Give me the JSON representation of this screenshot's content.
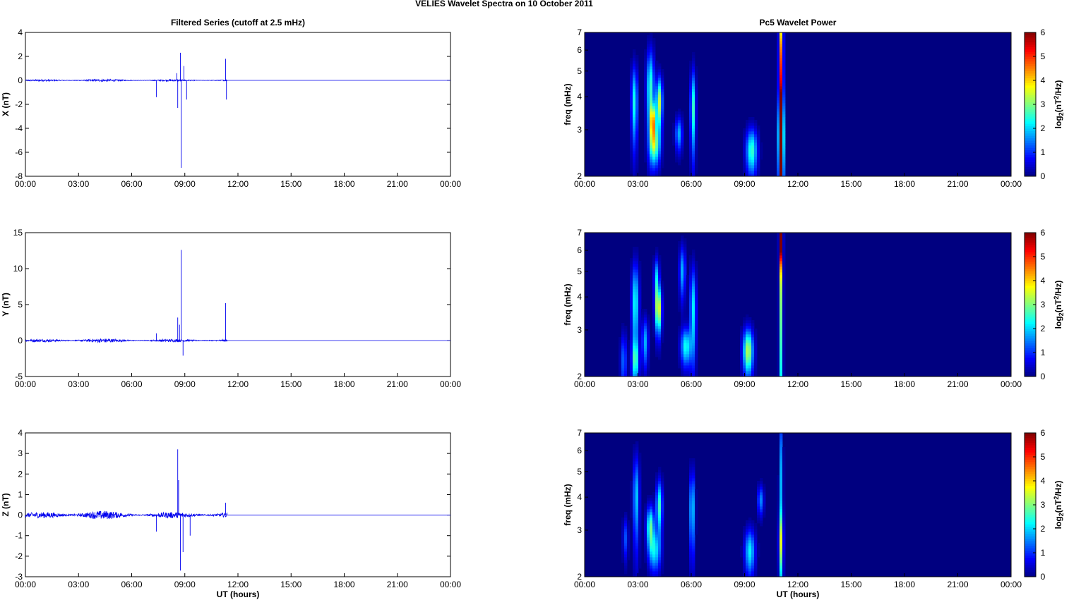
{
  "figure": {
    "title": "VELIES Wavelet Spectra on 10 October   2011",
    "left_title": "Filtered Series (cutoff at 2.5 mHz)",
    "right_title": "Pc5 Wavelet Power",
    "x_label": "UT (hours)"
  },
  "chart_data": [
    {
      "type": "line",
      "ylabel": "X (nT)",
      "xlim": [
        0,
        24
      ],
      "ylim": [
        -8,
        4
      ],
      "yticks": [
        -8,
        -6,
        -4,
        -2,
        0,
        2,
        4
      ],
      "xtick_labels": [
        "00:00",
        "03:00",
        "06:00",
        "09:00",
        "12:00",
        "15:00",
        "18:00",
        "21:00",
        "00:00"
      ],
      "noise_amp": 0.07,
      "active_end_hour": 11.4,
      "spikes": [
        {
          "x": 7.4,
          "y": -1.4
        },
        {
          "x": 8.55,
          "y": 0.6
        },
        {
          "x": 8.6,
          "y": -2.3
        },
        {
          "x": 8.75,
          "y": 2.3
        },
        {
          "x": 8.8,
          "y": -7.3
        },
        {
          "x": 8.95,
          "y": 1.2
        },
        {
          "x": 9.1,
          "y": -1.6
        },
        {
          "x": 11.3,
          "y": 1.8
        },
        {
          "x": 11.35,
          "y": -1.6
        }
      ]
    },
    {
      "type": "line",
      "ylabel": "Y (nT)",
      "xlim": [
        0,
        24
      ],
      "ylim": [
        -5,
        15
      ],
      "yticks": [
        -5,
        0,
        5,
        10,
        15
      ],
      "xtick_labels": [
        "00:00",
        "03:00",
        "06:00",
        "09:00",
        "12:00",
        "15:00",
        "18:00",
        "21:00",
        "00:00"
      ],
      "noise_amp": 0.2,
      "active_end_hour": 11.4,
      "spikes": [
        {
          "x": 7.4,
          "y": 1.0
        },
        {
          "x": 8.6,
          "y": 3.2
        },
        {
          "x": 8.7,
          "y": 2.2
        },
        {
          "x": 8.8,
          "y": 12.6
        },
        {
          "x": 8.9,
          "y": -2.1
        },
        {
          "x": 11.3,
          "y": 5.2
        }
      ]
    },
    {
      "type": "line",
      "ylabel": "Z (nT)",
      "xlim": [
        0,
        24
      ],
      "ylim": [
        -3,
        4
      ],
      "yticks": [
        -3,
        -2,
        -1,
        0,
        1,
        2,
        3,
        4
      ],
      "xtick_labels": [
        "00:00",
        "03:00",
        "06:00",
        "09:00",
        "12:00",
        "15:00",
        "18:00",
        "21:00",
        "00:00"
      ],
      "noise_amp": 0.15,
      "active_end_hour": 11.4,
      "spikes": [
        {
          "x": 7.4,
          "y": -0.8
        },
        {
          "x": 8.6,
          "y": 3.2
        },
        {
          "x": 8.65,
          "y": 1.7
        },
        {
          "x": 8.75,
          "y": -2.7
        },
        {
          "x": 8.9,
          "y": -1.8
        },
        {
          "x": 9.3,
          "y": -1.0
        },
        {
          "x": 11.3,
          "y": 0.6
        }
      ]
    },
    {
      "type": "heatmap",
      "ylabel": "freq (mHz)",
      "colorbar_label": "log2(nT2/Hz)",
      "xlim": [
        0,
        24
      ],
      "ylim": [
        2,
        7
      ],
      "yscale": "log",
      "yticks": [
        2,
        3,
        4,
        5,
        6,
        7
      ],
      "xtick_labels": [
        "00:00",
        "03:00",
        "06:00",
        "09:00",
        "12:00",
        "15:00",
        "18:00",
        "21:00",
        "00:00"
      ],
      "clim": [
        0,
        6
      ],
      "cticks": [
        0,
        1,
        2,
        3,
        4,
        5,
        6
      ],
      "blobs": [
        {
          "t": 2.8,
          "f": 3.8,
          "st": 0.12,
          "sf": 0.9,
          "a": 2.4
        },
        {
          "t": 3.7,
          "f": 4.3,
          "st": 0.15,
          "sf": 1.1,
          "a": 2.6
        },
        {
          "t": 3.85,
          "f": 3.2,
          "st": 0.12,
          "sf": 0.35,
          "a": 3.6
        },
        {
          "t": 3.95,
          "f": 2.6,
          "st": 0.2,
          "sf": 0.3,
          "a": 2.6
        },
        {
          "t": 4.2,
          "f": 3.8,
          "st": 0.12,
          "sf": 0.6,
          "a": 3.4
        },
        {
          "t": 5.3,
          "f": 2.9,
          "st": 0.14,
          "sf": 0.3,
          "a": 1.8
        },
        {
          "t": 6.1,
          "f": 3.6,
          "st": 0.1,
          "sf": 0.9,
          "a": 2.6
        },
        {
          "t": 9.4,
          "f": 2.5,
          "st": 0.22,
          "sf": 0.35,
          "a": 2.6
        },
        {
          "t": 11.05,
          "f": 4.2,
          "st": 0.08,
          "sf": 3.5,
          "a": 5.2
        },
        {
          "t": 11.05,
          "f": 2.8,
          "st": 0.09,
          "sf": 0.7,
          "a": 5.6
        }
      ]
    },
    {
      "type": "heatmap",
      "ylabel": "freq (mHz)",
      "colorbar_label": "log2(nT2/Hz)",
      "xlim": [
        0,
        24
      ],
      "ylim": [
        2,
        7
      ],
      "yscale": "log",
      "yticks": [
        2,
        3,
        4,
        5,
        6,
        7
      ],
      "xtick_labels": [
        "00:00",
        "03:00",
        "06:00",
        "09:00",
        "12:00",
        "15:00",
        "18:00",
        "21:00",
        "00:00"
      ],
      "clim": [
        0,
        6
      ],
      "cticks": [
        0,
        1,
        2,
        3,
        4,
        5,
        6
      ],
      "blobs": [
        {
          "t": 2.2,
          "f": 2.3,
          "st": 0.12,
          "sf": 0.4,
          "a": 1.4
        },
        {
          "t": 2.85,
          "f": 3.8,
          "st": 0.14,
          "sf": 1.0,
          "a": 2.4
        },
        {
          "t": 2.85,
          "f": 2.3,
          "st": 0.14,
          "sf": 0.3,
          "a": 2.2
        },
        {
          "t": 3.4,
          "f": 2.7,
          "st": 0.12,
          "sf": 0.4,
          "a": 1.8
        },
        {
          "t": 4.15,
          "f": 3.6,
          "st": 0.12,
          "sf": 0.5,
          "a": 3.8
        },
        {
          "t": 4.05,
          "f": 4.7,
          "st": 0.1,
          "sf": 0.6,
          "a": 2.0
        },
        {
          "t": 5.5,
          "f": 5.0,
          "st": 0.12,
          "sf": 0.8,
          "a": 1.8
        },
        {
          "t": 5.7,
          "f": 2.6,
          "st": 0.2,
          "sf": 0.3,
          "a": 2.4
        },
        {
          "t": 6.1,
          "f": 3.6,
          "st": 0.12,
          "sf": 1.0,
          "a": 2.2
        },
        {
          "t": 9.2,
          "f": 2.5,
          "st": 0.2,
          "sf": 0.35,
          "a": 3.4
        },
        {
          "t": 11.05,
          "f": 4.3,
          "st": 0.07,
          "sf": 3.0,
          "a": 3.0
        },
        {
          "t": 11.05,
          "f": 6.7,
          "st": 0.06,
          "sf": 1.0,
          "a": 4.6
        }
      ]
    },
    {
      "type": "heatmap",
      "ylabel": "freq (mHz)",
      "colorbar_label": "log2(nT2/Hz)",
      "xlim": [
        0,
        24
      ],
      "ylim": [
        2,
        7
      ],
      "yscale": "log",
      "yticks": [
        2,
        3,
        4,
        5,
        6,
        7
      ],
      "xtick_labels": [
        "00:00",
        "03:00",
        "06:00",
        "09:00",
        "12:00",
        "15:00",
        "18:00",
        "21:00",
        "00:00"
      ],
      "clim": [
        0,
        6
      ],
      "cticks": [
        0,
        1,
        2,
        3,
        4,
        5,
        6
      ],
      "blobs": [
        {
          "t": 2.3,
          "f": 2.8,
          "st": 0.1,
          "sf": 0.35,
          "a": 1.2
        },
        {
          "t": 2.9,
          "f": 4.0,
          "st": 0.12,
          "sf": 1.1,
          "a": 2.0
        },
        {
          "t": 3.7,
          "f": 3.1,
          "st": 0.15,
          "sf": 0.4,
          "a": 2.8
        },
        {
          "t": 3.95,
          "f": 2.5,
          "st": 0.22,
          "sf": 0.3,
          "a": 2.0
        },
        {
          "t": 4.2,
          "f": 3.7,
          "st": 0.12,
          "sf": 0.6,
          "a": 2.6
        },
        {
          "t": 6.05,
          "f": 3.6,
          "st": 0.1,
          "sf": 0.9,
          "a": 2.2
        },
        {
          "t": 9.3,
          "f": 2.5,
          "st": 0.2,
          "sf": 0.35,
          "a": 2.2
        },
        {
          "t": 9.9,
          "f": 3.9,
          "st": 0.12,
          "sf": 0.35,
          "a": 1.6
        },
        {
          "t": 11.05,
          "f": 4.5,
          "st": 0.07,
          "sf": 2.5,
          "a": 1.8
        },
        {
          "t": 11.05,
          "f": 2.7,
          "st": 0.09,
          "sf": 0.5,
          "a": 2.2
        }
      ]
    }
  ]
}
